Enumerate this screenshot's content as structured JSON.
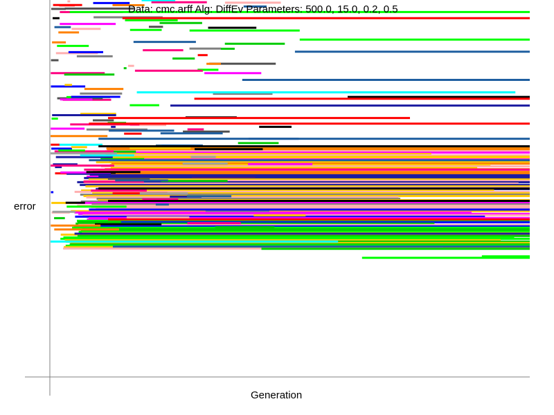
{
  "chart_data": {
    "type": "line",
    "title": "Data: cmc.arff    Alg: DiffEv    Parameters: 500.0, 15.0, 0.2, 0.5",
    "xlabel": "Generation",
    "ylabel": "error",
    "grid": false,
    "legend": "none",
    "tick_labels_shown": false,
    "palette": [
      "#ff0000",
      "#00ff00",
      "#0000ff",
      "#ff00ff",
      "#00ffff",
      "#ffc800",
      "#ffafaf",
      "#000000",
      "#808080",
      "#1f5fa0",
      "#ff8000",
      "#00cc00",
      "#1a1aa0",
      "#ff0080",
      "#a0a0a0",
      "#505050"
    ],
    "long_runs": [
      {
        "color": "#00ff00",
        "start": 0.04,
        "end": 1.0,
        "y": 0.032
      },
      {
        "color": "#ff0000",
        "start": 0.15,
        "end": 1.0,
        "y": 0.048
      },
      {
        "color": "#00ff00",
        "start": 0.29,
        "end": 0.52,
        "y": 0.081
      },
      {
        "color": "#00ff00",
        "start": 0.52,
        "end": 1.0,
        "y": 0.105
      },
      {
        "color": "#1f5fa0",
        "start": 0.51,
        "end": 1.0,
        "y": 0.137
      },
      {
        "color": "#1f5fa0",
        "start": 0.4,
        "end": 1.0,
        "y": 0.212
      },
      {
        "color": "#00ffff",
        "start": 0.18,
        "end": 0.97,
        "y": 0.245
      },
      {
        "color": "#000000",
        "start": 0.62,
        "end": 1.0,
        "y": 0.257
      },
      {
        "color": "#ff0000",
        "start": 0.3,
        "end": 1.0,
        "y": 0.262
      },
      {
        "color": "#1a1aa0",
        "start": 0.25,
        "end": 1.0,
        "y": 0.28
      },
      {
        "color": "#ff0000",
        "start": 0.12,
        "end": 0.75,
        "y": 0.313
      },
      {
        "color": "#ff0000",
        "start": 0.08,
        "end": 1.0,
        "y": 0.328
      },
      {
        "color": "#1f5fa0",
        "start": 0.1,
        "end": 1.0,
        "y": 0.368
      },
      {
        "color": "#000000",
        "start": 0.1,
        "end": 1.0,
        "y": 0.388
      },
      {
        "color": "#1f5fa0",
        "start": 0.08,
        "end": 1.0,
        "y": 0.425
      },
      {
        "color": "#ff0080",
        "start": 0.07,
        "end": 1.0,
        "y": 0.45
      },
      {
        "color": "#1a1aa0",
        "start": 0.1,
        "end": 1.0,
        "y": 0.468
      },
      {
        "color": "#000000",
        "start": 0.1,
        "end": 1.0,
        "y": 0.5
      },
      {
        "color": "#000000",
        "start": 0.12,
        "end": 1.0,
        "y": 0.533
      },
      {
        "color": "#0000ff",
        "start": 0.08,
        "end": 1.0,
        "y": 0.556
      },
      {
        "color": "#ff0000",
        "start": 0.12,
        "end": 1.0,
        "y": 0.582
      },
      {
        "color": "#1a1aa0",
        "start": 0.05,
        "end": 1.0,
        "y": 0.62
      },
      {
        "color": "#00ffff",
        "start": 0.0,
        "end": 0.6,
        "y": 0.641
      },
      {
        "color": "#1f5fa0",
        "start": 0.13,
        "end": 1.0,
        "y": 0.654
      },
      {
        "color": "#00cc00",
        "start": 0.44,
        "end": 1.0,
        "y": 0.66
      },
      {
        "color": "#00ff00",
        "start": 0.65,
        "end": 1.0,
        "y": 0.684
      },
      {
        "color": "#00ff00",
        "start": 0.9,
        "end": 1.0,
        "y": 0.68
      }
    ],
    "dense_bands": [
      {
        "start": 0.08,
        "end": 1.0,
        "y_top": 0.39,
        "y_bottom": 0.465,
        "colors": [
          "#ffc800",
          "#ff8000",
          "#ffafaf",
          "#ffc800",
          "#ff00ff"
        ]
      },
      {
        "start": 0.05,
        "end": 1.0,
        "y_top": 0.465,
        "y_bottom": 0.56,
        "colors": [
          "#ffafaf",
          "#ffc800",
          "#ffafaf",
          "#ff00ff",
          "#808080",
          "#ffc800",
          "#1a1aa0"
        ]
      },
      {
        "start": 0.03,
        "end": 1.0,
        "y_top": 0.56,
        "y_bottom": 0.615,
        "colors": [
          "#00ff00",
          "#00cc00",
          "#ffc800",
          "#ffafaf",
          "#0000ff",
          "#ff00ff"
        ]
      },
      {
        "start": 0.02,
        "end": 1.0,
        "y_top": 0.615,
        "y_bottom": 0.66,
        "colors": [
          "#00ff00",
          "#00ff00",
          "#ffafaf",
          "#00cc00",
          "#ffc800"
        ]
      }
    ],
    "noise": {
      "count": 130,
      "x_range": [
        0.0,
        0.45
      ],
      "y_range": [
        0.0,
        0.61
      ],
      "seed": 7
    }
  }
}
